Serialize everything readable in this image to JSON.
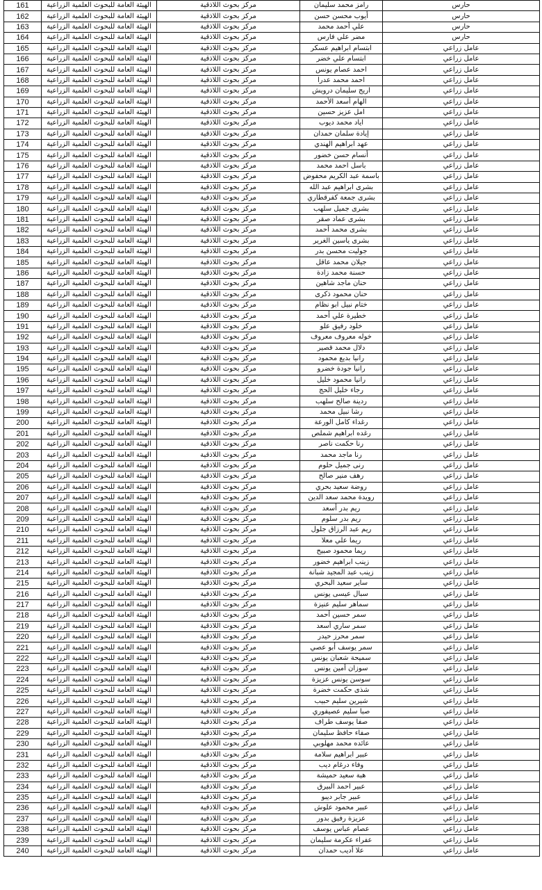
{
  "rows": [
    [
      "161",
      "الهيئة العامة للبحوث العلمية الزراعية",
      "مركز بحوث اللاذقية",
      "رامز محمد سليمان",
      "حارس"
    ],
    [
      "162",
      "الهيئة العامة للبحوث العلمية الزراعية",
      "مركز بحوث اللاذقية",
      "أيوب محسن حسن",
      "حارس"
    ],
    [
      "163",
      "الهيئة العامة للبحوث العلمية الزراعية",
      "مركز بحوث اللاذقية",
      "علي أحمد محمد",
      "حارس"
    ],
    [
      "164",
      "الهيئة العامة للبحوث العلمية الزراعية",
      "مركز بحوث اللاذقية",
      "مضر علي فارس",
      "حارس"
    ],
    [
      "165",
      "الهيئة العامة للبحوث العلمية الزراعية",
      "مركز بحوث اللاذقية",
      "ابتسام ابراهيم عسكر",
      "عامل زراعي"
    ],
    [
      "166",
      "الهيئة العامة للبحوث العلمية الزراعية",
      "مركز بحوث اللاذقية",
      "ابتسام علي خضر",
      "عامل زراعي"
    ],
    [
      "167",
      "الهيئة العامة للبحوث العلمية الزراعية",
      "مركز بحوث اللاذقية",
      "احمد عصام يونس",
      "عامل زراعي"
    ],
    [
      "168",
      "الهيئة العامة للبحوث العلمية الزراعية",
      "مركز بحوث اللاذقية",
      "احمد محمد عدرا",
      "عامل زراعي"
    ],
    [
      "169",
      "الهيئة العامة للبحوث العلمية الزراعية",
      "مركز بحوث اللاذقية",
      "اريج سليمان درويش",
      "عامل زراعي"
    ],
    [
      "170",
      "الهيئة العامة للبحوث العلمية الزراعية",
      "مركز بحوث اللاذقية",
      "الهام أسعد الأحمد",
      "عامل زراعي"
    ],
    [
      "171",
      "الهيئة العامة للبحوث العلمية الزراعية",
      "مركز بحوث اللاذقية",
      "امل عزيز حسين",
      "عامل زراعي"
    ],
    [
      "172",
      "الهيئة العامة للبحوث العلمية الزراعية",
      "مركز بحوث اللاذقية",
      "اياد محمد ديوب",
      "عامل زراعي"
    ],
    [
      "173",
      "الهيئة العامة للبحوث العلمية الزراعية",
      "مركز بحوث اللاذقية",
      "إيادة سلمان حمدان",
      "عامل زراعي"
    ],
    [
      "174",
      "الهيئة العامة للبحوث العلمية الزراعية",
      "مركز بحوث اللاذقية",
      "عهد ابراهيم الهندي",
      "عامل زراعي"
    ],
    [
      "175",
      "الهيئة العامة للبحوث العلمية الزراعية",
      "مركز بحوث اللاذقية",
      "أنسام حسن خضور",
      "عامل زراعي"
    ],
    [
      "176",
      "الهيئة العامة للبحوث العلمية الزراعية",
      "مركز بحوث اللاذقية",
      "باسل احمد محمد",
      "عامل زراعي"
    ],
    [
      "177",
      "الهيئة العامة للبحوث العلمية الزراعية",
      "مركز بحوث اللاذقية",
      "باسمة عبد الكريم محفوض",
      "عامل زراعي"
    ],
    [
      "178",
      "الهيئة العامة للبحوث العلمية الزراعية",
      "مركز بحوث اللاذقية",
      "بشرى ابراهيم عبد الله",
      "عامل زراعي"
    ],
    [
      "179",
      "الهيئة العامة للبحوث العلمية الزراعية",
      "مركز بحوث اللاذقية",
      "بشرى جمعة كفرقطاري",
      "عامل زراعي"
    ],
    [
      "180",
      "الهيئة العامة للبحوث العلمية الزراعية",
      "مركز بحوث اللاذقية",
      "بشرى جميل سلهب",
      "عامل زراعي"
    ],
    [
      "181",
      "الهيئة العامة للبحوث العلمية الزراعية",
      "مركز بحوث اللاذقية",
      "بشرى عماد صقر",
      "عامل زراعي"
    ],
    [
      "182",
      "الهيئة العامة للبحوث العلمية الزراعية",
      "مركز بحوث اللاذقية",
      "بشرى محمد أحمد",
      "عامل زراعي"
    ],
    [
      "183",
      "الهيئة العامة للبحوث العلمية الزراعية",
      "مركز بحوث اللاذقية",
      "بشرى ياسين الغرير",
      "عامل زراعي"
    ],
    [
      "184",
      "الهيئة العامة للبحوث العلمية الزراعية",
      "مركز بحوث اللاذقية",
      "جوليت محسن بدر",
      "عامل زراعي"
    ],
    [
      "185",
      "الهيئة العامة للبحوث العلمية الزراعية",
      "مركز بحوث اللاذقية",
      "جيلان محمد عاقل",
      "عامل زراعي"
    ],
    [
      "186",
      "الهيئة العامة للبحوث العلمية الزراعية",
      "مركز بحوث اللاذقية",
      "حسنة محمد زادة",
      "عامل زراعي"
    ],
    [
      "187",
      "الهيئة العامة للبحوث العلمية الزراعية",
      "مركز بحوث اللاذقية",
      "حنان ماجد شاهين",
      "عامل زراعي"
    ],
    [
      "188",
      "الهيئة العامة للبحوث العلمية الزراعية",
      "مركز بحوث اللاذقية",
      "حنان محمود ذكرى",
      "عامل زراعي"
    ],
    [
      "189",
      "الهيئة العامة للبحوث العلمية الزراعية",
      "مركز بحوث اللاذقية",
      "ختام نبيل ابو نظام",
      "عامل زراعي"
    ],
    [
      "190",
      "الهيئة العامة للبحوث العلمية الزراعية",
      "مركز بحوث اللاذقية",
      "خطيرة علي أحمد",
      "عامل زراعي"
    ],
    [
      "191",
      "الهيئة العامة للبحوث العلمية الزراعية",
      "مركز بحوث اللاذقية",
      "خلود رفيق علو",
      "عامل زراعي"
    ],
    [
      "192",
      "الهيئة العامة للبحوث العلمية الزراعية",
      "مركز بحوث اللاذقية",
      "خوله معروف معروف",
      "عامل زراعي"
    ],
    [
      "193",
      "الهيئة العامة للبحوث العلمية الزراعية",
      "مركز بحوث اللاذقية",
      "دلال محمد قصير",
      "عامل زراعي"
    ],
    [
      "194",
      "الهيئة العامة للبحوث العلمية الزراعية",
      "مركز بحوث اللاذقية",
      "رانيا بديع محمود",
      "عامل زراعي"
    ],
    [
      "195",
      "الهيئة العامة للبحوث العلمية الزراعية",
      "مركز بحوث اللاذقية",
      "رانيا جودة خضرو",
      "عامل زراعي"
    ],
    [
      "196",
      "الهيئة العامة للبحوث العلمية الزراعية",
      "مركز بحوث اللاذقية",
      "رانيا محمود خليل",
      "عامل زراعي"
    ],
    [
      "197",
      "الهيئة العامة للبحوث العلمية الزراعية",
      "مركز بحوث اللاذقية",
      "رجاء خليل الحج",
      "عامل زراعي"
    ],
    [
      "198",
      "الهيئة العامة للبحوث العلمية الزراعية",
      "مركز بحوث اللاذقية",
      "ردينة صالح سلهب",
      "عامل زراعي"
    ],
    [
      "199",
      "الهيئة العامة للبحوث العلمية الزراعية",
      "مركز بحوث اللاذقية",
      "رشا نبيل محمد",
      "عامل زراعي"
    ],
    [
      "200",
      "الهيئة العامة للبحوث العلمية الزراعية",
      "مركز بحوث اللاذقية",
      "رغداء كامل الورعة",
      "عامل زراعي"
    ],
    [
      "201",
      "الهيئة العامة للبحوث العلمية الزراعية",
      "مركز بحوث اللاذقية",
      "رغده ابراهيم شملص",
      "عامل زراعي"
    ],
    [
      "202",
      "الهيئة العامة للبحوث العلمية الزراعية",
      "مركز بحوث اللاذقية",
      "رنا حكمت ناصر",
      "عامل زراعي"
    ],
    [
      "203",
      "الهيئة العامة للبحوث العلمية الزراعية",
      "مركز بحوث اللاذقية",
      "رنا ماجد محمد",
      "عامل زراعي"
    ],
    [
      "204",
      "الهيئة العامة للبحوث العلمية الزراعية",
      "مركز بحوث اللاذقية",
      "رنى جميل حلوم",
      "عامل زراعي"
    ],
    [
      "205",
      "الهيئة العامة للبحوث العلمية الزراعية",
      "مركز بحوث اللاذقية",
      "رهف منير صالح",
      "عامل زراعي"
    ],
    [
      "206",
      "الهيئة العامة للبحوث العلمية الزراعية",
      "مركز بحوث اللاذقية",
      "روضة سعيد بحري",
      "عامل زراعي"
    ],
    [
      "207",
      "الهيئة العامة للبحوث العلمية الزراعية",
      "مركز بحوث اللاذقية",
      "رويدة محمد سعد الدين",
      "عامل زراعي"
    ],
    [
      "208",
      "الهيئة العامة للبحوث العلمية الزراعية",
      "مركز بحوث اللاذقية",
      "ريم بدر أسعد",
      "عامل زراعي"
    ],
    [
      "209",
      "الهيئة العامة للبحوث العلمية الزراعية",
      "مركز بحوث اللاذقية",
      "ريم بدر سلوم",
      "عامل زراعي"
    ],
    [
      "210",
      "الهيئة العامة للبحوث العلمية الزراعية",
      "مركز بحوث اللاذقية",
      "ريم عبد الرزاق جلول",
      "عامل زراعي"
    ],
    [
      "211",
      "الهيئة العامة للبحوث العلمية الزراعية",
      "مركز بحوث اللاذقية",
      "ريما علي معلا",
      "عامل زراعي"
    ],
    [
      "212",
      "الهيئة العامة للبحوث العلمية الزراعية",
      "مركز بحوث اللاذقية",
      "ريما محمود صبيح",
      "عامل زراعي"
    ],
    [
      "213",
      "الهيئة العامة للبحوث العلمية الزراعية",
      "مركز بحوث اللاذقية",
      "زينب ابراهيم خضور",
      "عامل زراعي"
    ],
    [
      "214",
      "الهيئة العامة للبحوث العلمية الزراعية",
      "مركز بحوث اللاذقية",
      "زينب عبد المجيد شبانة",
      "عامل زراعي"
    ],
    [
      "215",
      "الهيئة العامة للبحوث العلمية الزراعية",
      "مركز بحوث اللاذقية",
      "ساير سعيد البحري",
      "عامل زراعي"
    ],
    [
      "216",
      "الهيئة العامة للبحوث العلمية الزراعية",
      "مركز بحوث اللاذقية",
      "سبال عيسى يونس",
      "عامل زراعي"
    ],
    [
      "217",
      "الهيئة العامة للبحوث العلمية الزراعية",
      "مركز بحوث اللاذقية",
      "سماهر سليم عنيزة",
      "عامل زراعي"
    ],
    [
      "218",
      "الهيئة العامة للبحوث العلمية الزراعية",
      "مركز بحوث اللاذقية",
      "سمر حسين أحمد",
      "عامل زراعي"
    ],
    [
      "219",
      "الهيئة العامة للبحوث العلمية الزراعية",
      "مركز بحوث اللاذقية",
      "سمر ساري أسعد",
      "عامل زراعي"
    ],
    [
      "220",
      "الهيئة العامة للبحوث العلمية الزراعية",
      "مركز بحوث اللاذقية",
      "سمر محرز حيدر",
      "عامل زراعي"
    ],
    [
      "221",
      "الهيئة العامة للبحوث العلمية الزراعية",
      "مركز بحوث اللاذقية",
      "سمر يوسف أبو عصي",
      "عامل زراعي"
    ],
    [
      "222",
      "الهيئة العامة للبحوث العلمية الزراعية",
      "مركز بحوث اللاذقية",
      "سميحة شعبان يونس",
      "عامل زراعي"
    ],
    [
      "223",
      "الهيئة العامة للبحوث العلمية الزراعية",
      "مركز بحوث اللاذقية",
      "سوزان أمين يونس",
      "عامل زراعي"
    ],
    [
      "224",
      "الهيئة العامة للبحوث العلمية الزراعية",
      "مركز بحوث اللاذقية",
      "سوسن يونس عزيزة",
      "عامل زراعي"
    ],
    [
      "225",
      "الهيئة العامة للبحوث العلمية الزراعية",
      "مركز بحوث اللاذقية",
      "شذى حكمت خضرة",
      "عامل زراعي"
    ],
    [
      "226",
      "الهيئة العامة للبحوث العلمية الزراعية",
      "مركز بحوث اللاذقية",
      "شيرين سليم حبيب",
      "عامل زراعي"
    ],
    [
      "227",
      "الهيئة العامة للبحوث العلمية الزراعية",
      "مركز بحوث اللاذقية",
      "صبا سليم عصيفوري",
      "عامل زراعي"
    ],
    [
      "228",
      "الهيئة العامة للبحوث العلمية الزراعية",
      "مركز بحوث اللاذقية",
      "صفا يوسف طراف",
      "عامل زراعي"
    ],
    [
      "229",
      "الهيئة العامة للبحوث العلمية الزراعية",
      "مركز بحوث اللاذقية",
      "صفاء حافظ سليمان",
      "عامل زراعي"
    ],
    [
      "230",
      "الهيئة العامة للبحوث العلمية الزراعية",
      "مركز بحوث اللاذقية",
      "عائده محمد مهلوبي",
      "عامل زراعي"
    ],
    [
      "231",
      "الهيئة العامة للبحوث العلمية الزراعية",
      "مركز بحوث اللاذقية",
      "عبير ابراهيم سلامة",
      "عامل زراعي"
    ],
    [
      "232",
      "الهيئة العامة للبحوث العلمية الزراعية",
      "مركز بحوث اللاذقية",
      "وفاء درغام ديب",
      "عامل زراعي"
    ],
    [
      "233",
      "الهيئة العامة للبحوث العلمية الزراعية",
      "مركز بحوث اللاذقية",
      "هبة سعيد حميشة",
      "عامل زراعي"
    ],
    [
      "234",
      "الهيئة العامة للبحوث العلمية الزراعية",
      "مركز بحوث اللاذقية",
      "عبير احمد البيرق",
      "عامل زراعي"
    ],
    [
      "235",
      "الهيئة العامة للبحوث العلمية الزراعية",
      "مركز بحوث اللاذقية",
      "عبير جابر ديبو",
      "عامل زراعي"
    ],
    [
      "236",
      "الهيئة العامة للبحوث العلمية الزراعية",
      "مركز بحوث اللاذقية",
      "عبير محمود علوش",
      "عامل زراعي"
    ],
    [
      "237",
      "الهيئة العامة للبحوث العلمية الزراعية",
      "مركز بحوث اللاذقية",
      "عزيزة رفيق بدور",
      "عامل زراعي"
    ],
    [
      "238",
      "الهيئة العامة للبحوث العلمية الزراعية",
      "مركز بحوث اللاذقية",
      "عصام عباس يوسف",
      "عامل زراعي"
    ],
    [
      "239",
      "الهيئة العامة للبحوث العلمية الزراعية",
      "مركز بحوث اللاذقية",
      "عفراء عكرمة سليمان",
      "عامل زراعي"
    ],
    [
      "240",
      "الهيئة العامة للبحوث العلمية الزراعية",
      "مركز بحوث اللاذقية",
      "علا أديب حمدان",
      "عامل زراعي"
    ]
  ]
}
